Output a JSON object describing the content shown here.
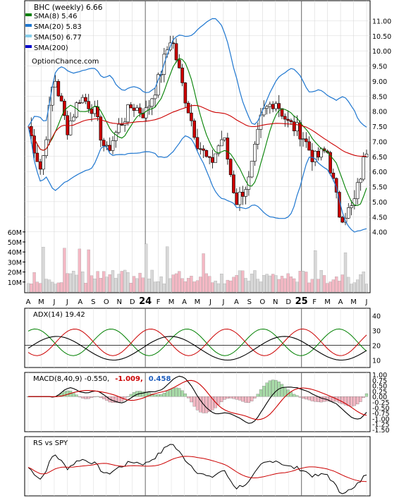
{
  "chart_data": {
    "type": "line",
    "title": "BHC (weekly) 6.66",
    "watermark": "OptionChance.com",
    "legend": [
      {
        "label": "SMA(8) 5.46",
        "color": "#008000"
      },
      {
        "label": "SMA(20) 5.83",
        "color": "#1f77d0"
      },
      {
        "label": "SMA(50) 6.77",
        "color": "#87ceeb"
      },
      {
        "label": "SMA(200)",
        "color": "#0000cc"
      }
    ],
    "months": [
      "A",
      "M",
      "J",
      "J",
      "A",
      "S",
      "O",
      "N",
      "D",
      "24",
      "F",
      "M",
      "A",
      "M",
      "J",
      "J",
      "A",
      "S",
      "O",
      "N",
      "D",
      "25",
      "F",
      "M",
      "A",
      "M",
      "J"
    ],
    "price_axis": {
      "ticks": [
        "4.00",
        "4.50",
        "5.00",
        "5.50",
        "6.00",
        "6.50",
        "7.00",
        "7.50",
        "8.00",
        "8.50",
        "9.00",
        "9.50",
        "10.00",
        "10.50",
        "11.00"
      ],
      "ylim": [
        3.5,
        11.5
      ]
    },
    "volume_axis": {
      "ticks": [
        "10M",
        "20M",
        "30M",
        "40M",
        "50M",
        "60M"
      ]
    },
    "price_key_points": [
      {
        "month": "A",
        "close": 7.5
      },
      {
        "month": "M",
        "close": 6.0
      },
      {
        "month": "J",
        "close": 9.2
      },
      {
        "month": "J",
        "close": 7.4
      },
      {
        "month": "A",
        "close": 8.5
      },
      {
        "month": "S",
        "close": 8.1
      },
      {
        "month": "O",
        "close": 6.6
      },
      {
        "month": "N",
        "close": 7.5
      },
      {
        "month": "D",
        "close": 8.2
      },
      {
        "month": "24",
        "close": 7.9
      },
      {
        "month": "F",
        "close": 9.0
      },
      {
        "month": "M",
        "close": 10.5
      },
      {
        "month": "A",
        "close": 8.6
      },
      {
        "month": "M",
        "close": 7.0
      },
      {
        "month": "J",
        "close": 6.2
      },
      {
        "month": "J",
        "close": 7.2
      },
      {
        "month": "A",
        "close": 5.0
      },
      {
        "month": "S",
        "close": 5.7
      },
      {
        "month": "O",
        "close": 7.9
      },
      {
        "month": "N",
        "close": 8.4
      },
      {
        "month": "D",
        "close": 7.6
      },
      {
        "month": "25",
        "close": 7.3
      },
      {
        "month": "F",
        "close": 6.4
      },
      {
        "month": "M",
        "close": 6.7
      },
      {
        "month": "A",
        "close": 4.5
      },
      {
        "month": "M",
        "close": 4.8
      },
      {
        "month": "J",
        "close": 6.66
      }
    ],
    "panels": {
      "adx": {
        "label": "ADX(14) 19.42",
        "ticks": [
          "10",
          "20",
          "30",
          "40"
        ],
        "ylim": [
          5,
          45
        ]
      },
      "macd": {
        "label": "MACD(8,40,9) -0.550,",
        "value2": "-1.009,",
        "value3": "0.458",
        "ticks": [
          "-1.50",
          "-1.25",
          "-1.00",
          "-0.75",
          "-0.50",
          "-0.25",
          "0.00",
          "0.25",
          "0.50",
          "0.75",
          "1.00"
        ],
        "ylim": [
          -1.6,
          1.1
        ]
      },
      "rs": {
        "label": "RS vs SPY"
      }
    }
  }
}
